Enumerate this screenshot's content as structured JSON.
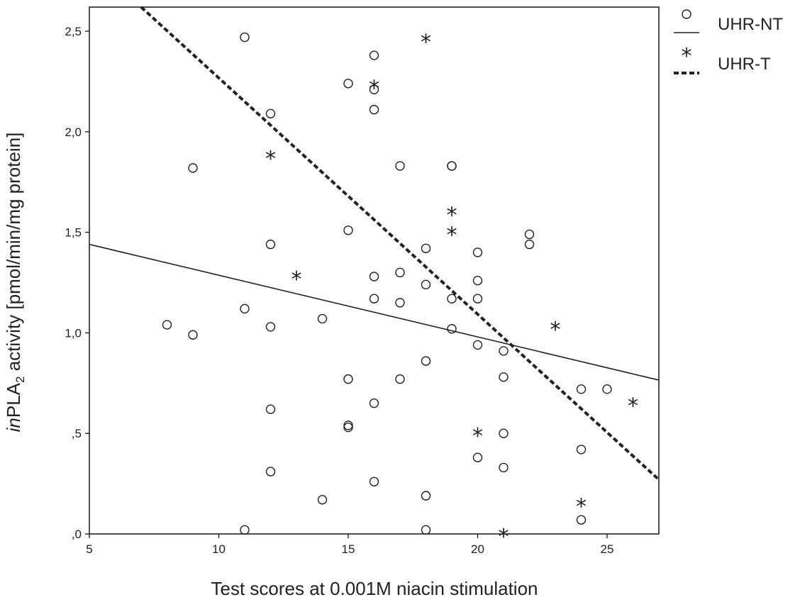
{
  "chart_data": {
    "type": "scatter",
    "xlabel": "Test scores at 0.001M niacin stimulation",
    "ylabel_parts": [
      "in",
      "PLA",
      "2",
      " activity [pmol/min/mg protein]"
    ],
    "xlim": [
      5,
      27
    ],
    "ylim": [
      0,
      2.62
    ],
    "x_ticks": [
      5,
      10,
      15,
      20,
      25
    ],
    "x_tick_labels": [
      "5",
      "10",
      "15",
      "20",
      "25"
    ],
    "y_ticks": [
      0,
      0.5,
      1.0,
      1.5,
      2.0,
      2.5
    ],
    "y_tick_labels": [
      ",0",
      ",5",
      "1,0",
      "1,5",
      "2,0",
      "2,5"
    ],
    "grid": false,
    "legend_position": "top-right, outside plot",
    "series": [
      {
        "name": "UHR-NT",
        "marker": "circle",
        "line_style": "solid",
        "fit_line": [
          [
            5,
            1.44
          ],
          [
            27,
            0.765
          ]
        ],
        "points": [
          [
            8,
            1.04
          ],
          [
            9,
            0.99
          ],
          [
            9,
            1.82
          ],
          [
            11,
            2.47
          ],
          [
            11,
            1.12
          ],
          [
            11,
            0.02
          ],
          [
            12,
            2.09
          ],
          [
            12,
            1.44
          ],
          [
            12,
            1.03
          ],
          [
            12,
            0.62
          ],
          [
            12,
            0.31
          ],
          [
            14,
            1.07
          ],
          [
            14,
            0.17
          ],
          [
            15,
            2.24
          ],
          [
            15,
            1.51
          ],
          [
            15,
            0.77
          ],
          [
            15,
            0.54
          ],
          [
            15,
            0.53
          ],
          [
            16,
            2.38
          ],
          [
            16,
            2.21
          ],
          [
            16,
            2.11
          ],
          [
            16,
            1.28
          ],
          [
            16,
            1.17
          ],
          [
            16,
            0.65
          ],
          [
            16,
            0.26
          ],
          [
            17,
            1.83
          ],
          [
            17,
            1.3
          ],
          [
            17,
            1.15
          ],
          [
            17,
            0.77
          ],
          [
            18,
            1.42
          ],
          [
            18,
            1.24
          ],
          [
            18,
            0.86
          ],
          [
            18,
            0.19
          ],
          [
            18,
            0.02
          ],
          [
            19,
            1.83
          ],
          [
            19,
            1.83
          ],
          [
            19,
            1.17
          ],
          [
            19,
            1.02
          ],
          [
            20,
            1.4
          ],
          [
            20,
            1.26
          ],
          [
            20,
            1.17
          ],
          [
            20,
            0.94
          ],
          [
            20,
            0.38
          ],
          [
            21,
            0.91
          ],
          [
            21,
            0.78
          ],
          [
            21,
            0.5
          ],
          [
            21,
            0.33
          ],
          [
            22,
            1.49
          ],
          [
            22,
            1.44
          ],
          [
            24,
            0.72
          ],
          [
            24,
            0.42
          ],
          [
            24,
            0.07
          ],
          [
            25,
            0.72
          ]
        ]
      },
      {
        "name": "UHR-T",
        "marker": "star",
        "line_style": "dashed",
        "fit_line": [
          [
            7,
            2.62
          ],
          [
            27,
            0.27
          ]
        ],
        "points": [
          [
            12,
            1.88
          ],
          [
            13,
            1.28
          ],
          [
            16,
            2.23
          ],
          [
            18,
            2.46
          ],
          [
            19,
            1.6
          ],
          [
            19,
            1.5
          ],
          [
            20,
            0.5
          ],
          [
            21,
            0.0
          ],
          [
            23,
            1.03
          ],
          [
            24,
            0.15
          ],
          [
            26,
            0.65
          ]
        ]
      }
    ]
  },
  "icons": {
    "circle_marker": "circle-marker-icon",
    "star_marker": "star-marker-icon"
  },
  "colors": {
    "ink": "#222222",
    "background": "#ffffff"
  }
}
